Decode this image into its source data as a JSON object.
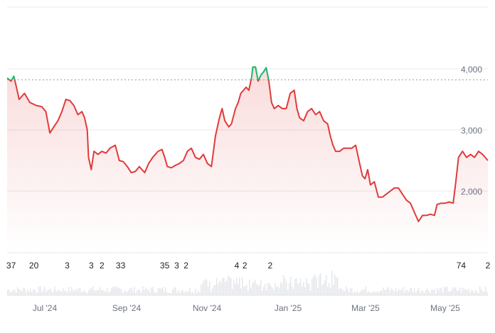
{
  "chart_data": {
    "type": "area",
    "y_ticks": [
      "4,000",
      "3,000",
      "2,000"
    ],
    "y_tick_values": [
      4000,
      3000,
      2000
    ],
    "x_ticks": [
      "Jul '24",
      "Sep '24",
      "Nov '24",
      "Jan '25",
      "Mar '25",
      "May '25"
    ],
    "x_tick_dates": [
      "2024-07-01",
      "2024-09-01",
      "2024-11-01",
      "2025-01-01",
      "2025-03-01",
      "2025-05-01"
    ],
    "x_range": [
      "2024-06-05",
      "2025-05-31"
    ],
    "ylim": [
      1000,
      4400
    ],
    "baseline_value": 3820,
    "grid": true,
    "colors": {
      "line_below": "#e03b3b",
      "line_above": "#19b86b",
      "fill_top": "rgba(224,59,59,0.18)",
      "fill_bottom": "rgba(224,59,59,0.0)",
      "gridline": "#e8e8e8",
      "baseline": "#9a9a9a",
      "volume": "#e3e6ea"
    },
    "event_markers": [
      {
        "label": "37",
        "date": "2024-06-08"
      },
      {
        "label": "20",
        "date": "2024-06-25"
      },
      {
        "label": "3",
        "date": "2024-07-20"
      },
      {
        "label": "3",
        "date": "2024-08-07"
      },
      {
        "label": "2",
        "date": "2024-08-15"
      },
      {
        "label": "33",
        "date": "2024-08-29"
      },
      {
        "label": "35",
        "date": "2024-10-01"
      },
      {
        "label": "3",
        "date": "2024-10-10"
      },
      {
        "label": "2",
        "date": "2024-10-17"
      },
      {
        "label": "4",
        "date": "2024-11-24"
      },
      {
        "label": "2",
        "date": "2024-11-30"
      },
      {
        "label": "2",
        "date": "2024-12-19"
      },
      {
        "label": "74",
        "date": "2025-05-11"
      },
      {
        "label": "2",
        "date": "2025-05-31"
      }
    ],
    "series": [
      {
        "values": [
          [
            "2024-06-05",
            3850
          ],
          [
            "2024-06-08",
            3800
          ],
          [
            "2024-06-10",
            3880
          ],
          [
            "2024-06-12",
            3700
          ],
          [
            "2024-06-14",
            3500
          ],
          [
            "2024-06-18",
            3600
          ],
          [
            "2024-06-22",
            3450
          ],
          [
            "2024-06-27",
            3400
          ],
          [
            "2024-07-01",
            3380
          ],
          [
            "2024-07-04",
            3300
          ],
          [
            "2024-07-07",
            2950
          ],
          [
            "2024-07-10",
            3050
          ],
          [
            "2024-07-13",
            3150
          ],
          [
            "2024-07-16",
            3300
          ],
          [
            "2024-07-19",
            3500
          ],
          [
            "2024-07-22",
            3480
          ],
          [
            "2024-07-25",
            3400
          ],
          [
            "2024-07-28",
            3250
          ],
          [
            "2024-07-31",
            3300
          ],
          [
            "2024-08-02",
            3200
          ],
          [
            "2024-08-04",
            3000
          ],
          [
            "2024-08-05",
            2550
          ],
          [
            "2024-08-07",
            2350
          ],
          [
            "2024-08-09",
            2650
          ],
          [
            "2024-08-12",
            2600
          ],
          [
            "2024-08-15",
            2650
          ],
          [
            "2024-08-18",
            2620
          ],
          [
            "2024-08-21",
            2700
          ],
          [
            "2024-08-25",
            2750
          ],
          [
            "2024-08-28",
            2500
          ],
          [
            "2024-08-31",
            2480
          ],
          [
            "2024-09-03",
            2400
          ],
          [
            "2024-09-06",
            2300
          ],
          [
            "2024-09-09",
            2320
          ],
          [
            "2024-09-12",
            2400
          ],
          [
            "2024-09-16",
            2300
          ],
          [
            "2024-09-19",
            2450
          ],
          [
            "2024-09-22",
            2550
          ],
          [
            "2024-09-26",
            2650
          ],
          [
            "2024-09-29",
            2680
          ],
          [
            "2024-10-01",
            2550
          ],
          [
            "2024-10-03",
            2400
          ],
          [
            "2024-10-06",
            2380
          ],
          [
            "2024-10-09",
            2420
          ],
          [
            "2024-10-12",
            2450
          ],
          [
            "2024-10-15",
            2500
          ],
          [
            "2024-10-18",
            2650
          ],
          [
            "2024-10-21",
            2700
          ],
          [
            "2024-10-24",
            2550
          ],
          [
            "2024-10-27",
            2520
          ],
          [
            "2024-10-30",
            2600
          ],
          [
            "2024-11-02",
            2450
          ],
          [
            "2024-11-05",
            2400
          ],
          [
            "2024-11-08",
            2900
          ],
          [
            "2024-11-11",
            3200
          ],
          [
            "2024-11-13",
            3350
          ],
          [
            "2024-11-15",
            3150
          ],
          [
            "2024-11-18",
            3050
          ],
          [
            "2024-11-20",
            3100
          ],
          [
            "2024-11-23",
            3350
          ],
          [
            "2024-11-25",
            3450
          ],
          [
            "2024-11-27",
            3600
          ],
          [
            "2024-11-29",
            3650
          ],
          [
            "2024-12-01",
            3700
          ],
          [
            "2024-12-03",
            3650
          ],
          [
            "2024-12-05",
            3850
          ],
          [
            "2024-12-06",
            4030
          ],
          [
            "2024-12-08",
            4030
          ],
          [
            "2024-12-10",
            3800
          ],
          [
            "2024-12-12",
            3900
          ],
          [
            "2024-12-14",
            3950
          ],
          [
            "2024-12-16",
            4020
          ],
          [
            "2024-12-18",
            3800
          ],
          [
            "2024-12-20",
            3450
          ],
          [
            "2024-12-22",
            3350
          ],
          [
            "2024-12-25",
            3400
          ],
          [
            "2024-12-28",
            3350
          ],
          [
            "2024-12-31",
            3350
          ],
          [
            "2025-01-03",
            3600
          ],
          [
            "2025-01-06",
            3650
          ],
          [
            "2025-01-08",
            3350
          ],
          [
            "2025-01-10",
            3200
          ],
          [
            "2025-01-13",
            3150
          ],
          [
            "2025-01-16",
            3300
          ],
          [
            "2025-01-19",
            3350
          ],
          [
            "2025-01-22",
            3250
          ],
          [
            "2025-01-25",
            3300
          ],
          [
            "2025-01-28",
            3150
          ],
          [
            "2025-01-31",
            3100
          ],
          [
            "2025-02-02",
            2900
          ],
          [
            "2025-02-04",
            2750
          ],
          [
            "2025-02-06",
            2650
          ],
          [
            "2025-02-09",
            2650
          ],
          [
            "2025-02-12",
            2700
          ],
          [
            "2025-02-15",
            2700
          ],
          [
            "2025-02-18",
            2700
          ],
          [
            "2025-02-21",
            2750
          ],
          [
            "2025-02-24",
            2450
          ],
          [
            "2025-02-26",
            2250
          ],
          [
            "2025-02-28",
            2200
          ],
          [
            "2025-03-02",
            2350
          ],
          [
            "2025-03-04",
            2100
          ],
          [
            "2025-03-07",
            2150
          ],
          [
            "2025-03-10",
            1900
          ],
          [
            "2025-03-13",
            1900
          ],
          [
            "2025-03-16",
            1950
          ],
          [
            "2025-03-19",
            2000
          ],
          [
            "2025-03-22",
            2050
          ],
          [
            "2025-03-25",
            2050
          ],
          [
            "2025-03-28",
            1950
          ],
          [
            "2025-03-31",
            1850
          ],
          [
            "2025-04-03",
            1800
          ],
          [
            "2025-04-06",
            1650
          ],
          [
            "2025-04-09",
            1500
          ],
          [
            "2025-04-12",
            1600
          ],
          [
            "2025-04-15",
            1600
          ],
          [
            "2025-04-18",
            1620
          ],
          [
            "2025-04-21",
            1600
          ],
          [
            "2025-04-23",
            1780
          ],
          [
            "2025-04-26",
            1800
          ],
          [
            "2025-04-29",
            1800
          ],
          [
            "2025-05-02",
            1820
          ],
          [
            "2025-05-05",
            1800
          ],
          [
            "2025-05-07",
            2150
          ],
          [
            "2025-05-09",
            2550
          ],
          [
            "2025-05-12",
            2650
          ],
          [
            "2025-05-15",
            2550
          ],
          [
            "2025-05-18",
            2600
          ],
          [
            "2025-05-21",
            2550
          ],
          [
            "2025-05-24",
            2650
          ],
          [
            "2025-05-27",
            2600
          ],
          [
            "2025-05-31",
            2500
          ]
        ]
      }
    ]
  }
}
